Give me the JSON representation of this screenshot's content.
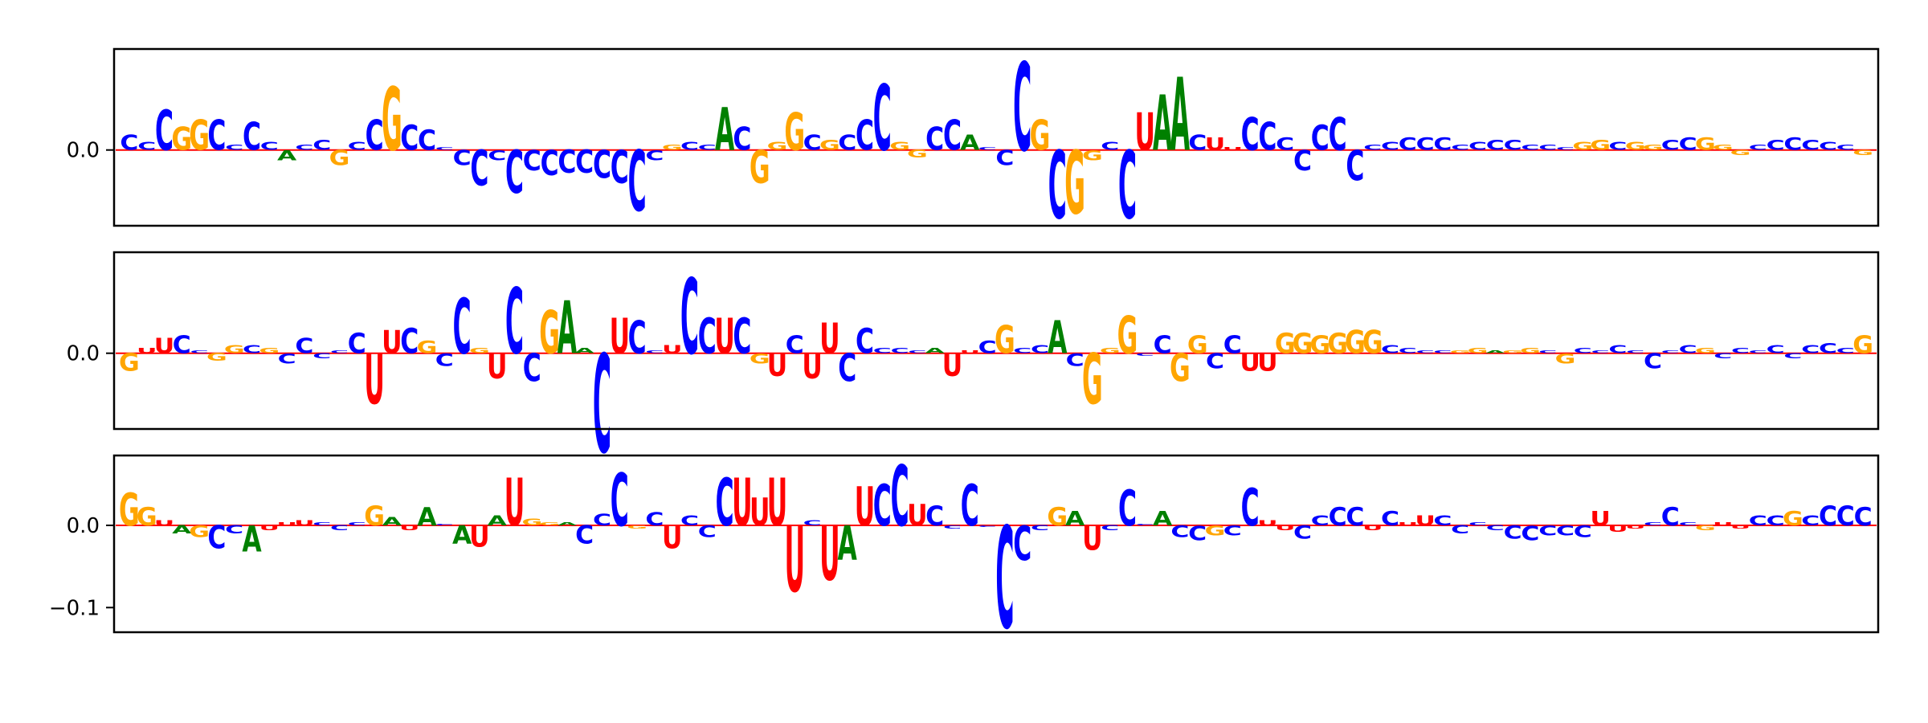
{
  "chart_data": {
    "type": "sequence-logo",
    "alphabet": [
      "A",
      "C",
      "G",
      "U"
    ],
    "colors": {
      "A": "#008000",
      "C": "#0000ff",
      "G": "#ffa500",
      "U": "#ff0000"
    },
    "panels": [
      {
        "name": "",
        "ylim": [
          -0.06,
          0.08
        ],
        "yticks": [
          0.0
        ],
        "ytick_labels": [
          "0.0"
        ],
        "letters": [
          "C",
          "C",
          "C",
          "G",
          "G",
          "C",
          "C",
          "C",
          "C",
          "A",
          "C",
          "C",
          "G",
          "C",
          "C",
          "G",
          "C",
          "C",
          "C",
          "C",
          "C",
          "C",
          "C",
          "C",
          "C",
          "C",
          "C",
          "C",
          "C",
          "C",
          "C",
          "G",
          "C",
          "C",
          "A",
          "C",
          "G",
          "G",
          "G",
          "C",
          "G",
          "C",
          "C",
          "C",
          "G",
          "G",
          "C",
          "C",
          "A",
          "C",
          "C",
          "C",
          "G",
          "C",
          "G",
          "G",
          "C",
          "C",
          "U",
          "A",
          "A",
          "C",
          "U",
          "U",
          "C",
          "C",
          "C",
          "C",
          "C",
          "C",
          "C",
          "C",
          "C",
          "C",
          "C",
          "C",
          "C",
          "C",
          "C",
          "C",
          "C",
          "C",
          "C",
          "G",
          "G",
          "C",
          "G",
          "G",
          "C",
          "C",
          "G",
          "G",
          "G",
          "C",
          "C",
          "C",
          "C",
          "C",
          "C",
          "G"
        ],
        "values": [
          0.012,
          0.006,
          0.032,
          0.018,
          0.024,
          0.024,
          0.004,
          0.022,
          0.006,
          -0.008,
          0.004,
          0.008,
          -0.012,
          0.006,
          0.024,
          0.05,
          0.02,
          0.016,
          0.002,
          -0.012,
          -0.028,
          -0.008,
          -0.034,
          -0.016,
          -0.02,
          -0.018,
          -0.018,
          -0.022,
          -0.026,
          -0.048,
          -0.008,
          0.004,
          0.006,
          0.004,
          0.034,
          0.018,
          -0.026,
          0.006,
          0.03,
          0.012,
          0.008,
          0.012,
          0.024,
          0.052,
          0.006,
          -0.006,
          0.018,
          0.024,
          0.012,
          0.002,
          -0.012,
          0.07,
          0.024,
          -0.054,
          -0.05,
          -0.008,
          0.006,
          -0.054,
          0.03,
          0.044,
          0.058,
          0.012,
          0.01,
          0.002,
          0.026,
          0.022,
          0.01,
          -0.016,
          0.02,
          0.026,
          -0.024,
          0.004,
          0.006,
          0.01,
          0.01,
          0.01,
          0.004,
          0.006,
          0.008,
          0.008,
          0.004,
          0.004,
          0.002,
          0.006,
          0.008,
          0.006,
          0.006,
          0.004,
          0.008,
          0.01,
          0.01,
          0.004,
          -0.004,
          0.004,
          0.008,
          0.01,
          0.008,
          0.006,
          0.004,
          -0.004
        ]
      },
      {
        "name": "",
        "ylim": [
          -0.06,
          0.08
        ],
        "yticks": [
          0.0
        ],
        "ytick_labels": [
          "0.0"
        ],
        "letters": [
          "G",
          "U",
          "U",
          "C",
          "C",
          "G",
          "G",
          "C",
          "G",
          "C",
          "C",
          "C",
          "C",
          "C",
          "U",
          "U",
          "C",
          "G",
          "C",
          "C",
          "G",
          "U",
          "C",
          "C",
          "G",
          "A",
          "A",
          "C",
          "U",
          "C",
          "C",
          "U",
          "C",
          "C",
          "U",
          "C",
          "G",
          "U",
          "C",
          "U",
          "U",
          "C",
          "C",
          "C",
          "C",
          "C",
          "A",
          "U",
          "U",
          "C",
          "G",
          "C",
          "C",
          "A",
          "C",
          "G",
          "G",
          "G",
          "C",
          "C",
          "G",
          "G",
          "C",
          "C",
          "U",
          "U",
          "G",
          "G",
          "G",
          "G",
          "G",
          "G",
          "C",
          "C",
          "C",
          "C",
          "G",
          "G",
          "A",
          "G",
          "G",
          "C",
          "G",
          "C",
          "C",
          "C",
          "C",
          "C",
          "C",
          "C",
          "G",
          "C",
          "C",
          "C",
          "C",
          "C",
          "C",
          "C",
          "C",
          "G"
        ],
        "values": [
          -0.014,
          0.004,
          0.012,
          0.014,
          0.002,
          -0.006,
          0.006,
          0.006,
          0.004,
          -0.008,
          0.012,
          -0.004,
          0.002,
          0.016,
          -0.04,
          0.018,
          0.02,
          0.01,
          -0.01,
          0.044,
          0.004,
          -0.02,
          0.052,
          -0.022,
          0.034,
          0.042,
          0.004,
          -0.078,
          0.028,
          0.026,
          0.002,
          0.006,
          0.06,
          0.028,
          0.028,
          0.028,
          -0.008,
          -0.018,
          0.014,
          -0.02,
          0.024,
          -0.022,
          0.02,
          0.004,
          0.004,
          0.002,
          0.004,
          -0.018,
          0.002,
          0.01,
          0.022,
          0.004,
          0.006,
          0.026,
          -0.01,
          -0.04,
          0.004,
          0.03,
          -0.002,
          0.014,
          -0.022,
          0.014,
          -0.012,
          0.014,
          -0.014,
          -0.014,
          0.016,
          0.016,
          0.014,
          0.016,
          0.018,
          0.018,
          0.006,
          0.004,
          0.002,
          0.002,
          0.002,
          0.004,
          0.002,
          0.002,
          0.004,
          0.002,
          -0.008,
          0.004,
          0.002,
          0.006,
          0.002,
          -0.012,
          0.002,
          0.006,
          0.004,
          -0.004,
          0.004,
          0.002,
          0.006,
          -0.004,
          0.006,
          0.008,
          0.004,
          0.014
        ]
      },
      {
        "name": "",
        "ylim": [
          -0.13,
          0.085
        ],
        "yticks": [
          0.0,
          -0.1
        ],
        "ytick_labels": [
          "0.0",
          "−0.1"
        ],
        "letters": [
          "G",
          "G",
          "U",
          "A",
          "G",
          "C",
          "C",
          "A",
          "U",
          "U",
          "U",
          "C",
          "C",
          "C",
          "G",
          "A",
          "U",
          "A",
          "C",
          "A",
          "U",
          "A",
          "U",
          "G",
          "G",
          "A",
          "C",
          "C",
          "C",
          "G",
          "C",
          "U",
          "C",
          "C",
          "C",
          "U",
          "U",
          "U",
          "U",
          "C",
          "U",
          "A",
          "U",
          "C",
          "C",
          "U",
          "C",
          "C",
          "C",
          "C",
          "C",
          "C",
          "C",
          "G",
          "A",
          "U",
          "C",
          "C",
          "C",
          "A",
          "C",
          "C",
          "G",
          "C",
          "C",
          "U",
          "U",
          "C",
          "C",
          "C",
          "C",
          "U",
          "C",
          "U",
          "U",
          "C",
          "C",
          "C",
          "C",
          "C",
          "C",
          "C",
          "C",
          "C",
          "U",
          "U",
          "U",
          "C",
          "C",
          "C",
          "G",
          "U",
          "U",
          "C",
          "C",
          "G",
          "C",
          "C",
          "C",
          "C"
        ],
        "values": [
          0.04,
          0.022,
          0.006,
          -0.01,
          -0.014,
          -0.028,
          -0.01,
          -0.032,
          -0.006,
          0.004,
          0.006,
          0.004,
          -0.006,
          0.004,
          0.024,
          0.01,
          -0.006,
          0.022,
          0.002,
          -0.022,
          -0.026,
          0.012,
          0.058,
          0.008,
          0.004,
          0.004,
          -0.022,
          0.014,
          0.064,
          -0.004,
          0.016,
          -0.028,
          0.012,
          -0.014,
          0.058,
          0.058,
          0.034,
          0.058,
          -0.08,
          0.006,
          -0.066,
          -0.042,
          0.048,
          0.05,
          0.074,
          0.026,
          0.024,
          -0.004,
          0.05,
          -0.002,
          -0.124,
          -0.042,
          -0.006,
          0.022,
          0.018,
          -0.03,
          -0.006,
          0.044,
          0.002,
          0.018,
          -0.014,
          -0.018,
          -0.012,
          -0.012,
          0.046,
          0.006,
          -0.006,
          -0.016,
          0.012,
          0.022,
          0.022,
          -0.006,
          0.018,
          0.004,
          0.012,
          0.012,
          -0.01,
          0.004,
          -0.006,
          -0.016,
          -0.018,
          -0.012,
          -0.012,
          -0.014,
          0.018,
          -0.008,
          -0.004,
          0.004,
          0.022,
          0.004,
          -0.006,
          0.004,
          -0.004,
          0.012,
          0.012,
          0.018,
          0.012,
          0.024,
          0.024,
          0.022
        ]
      }
    ]
  }
}
